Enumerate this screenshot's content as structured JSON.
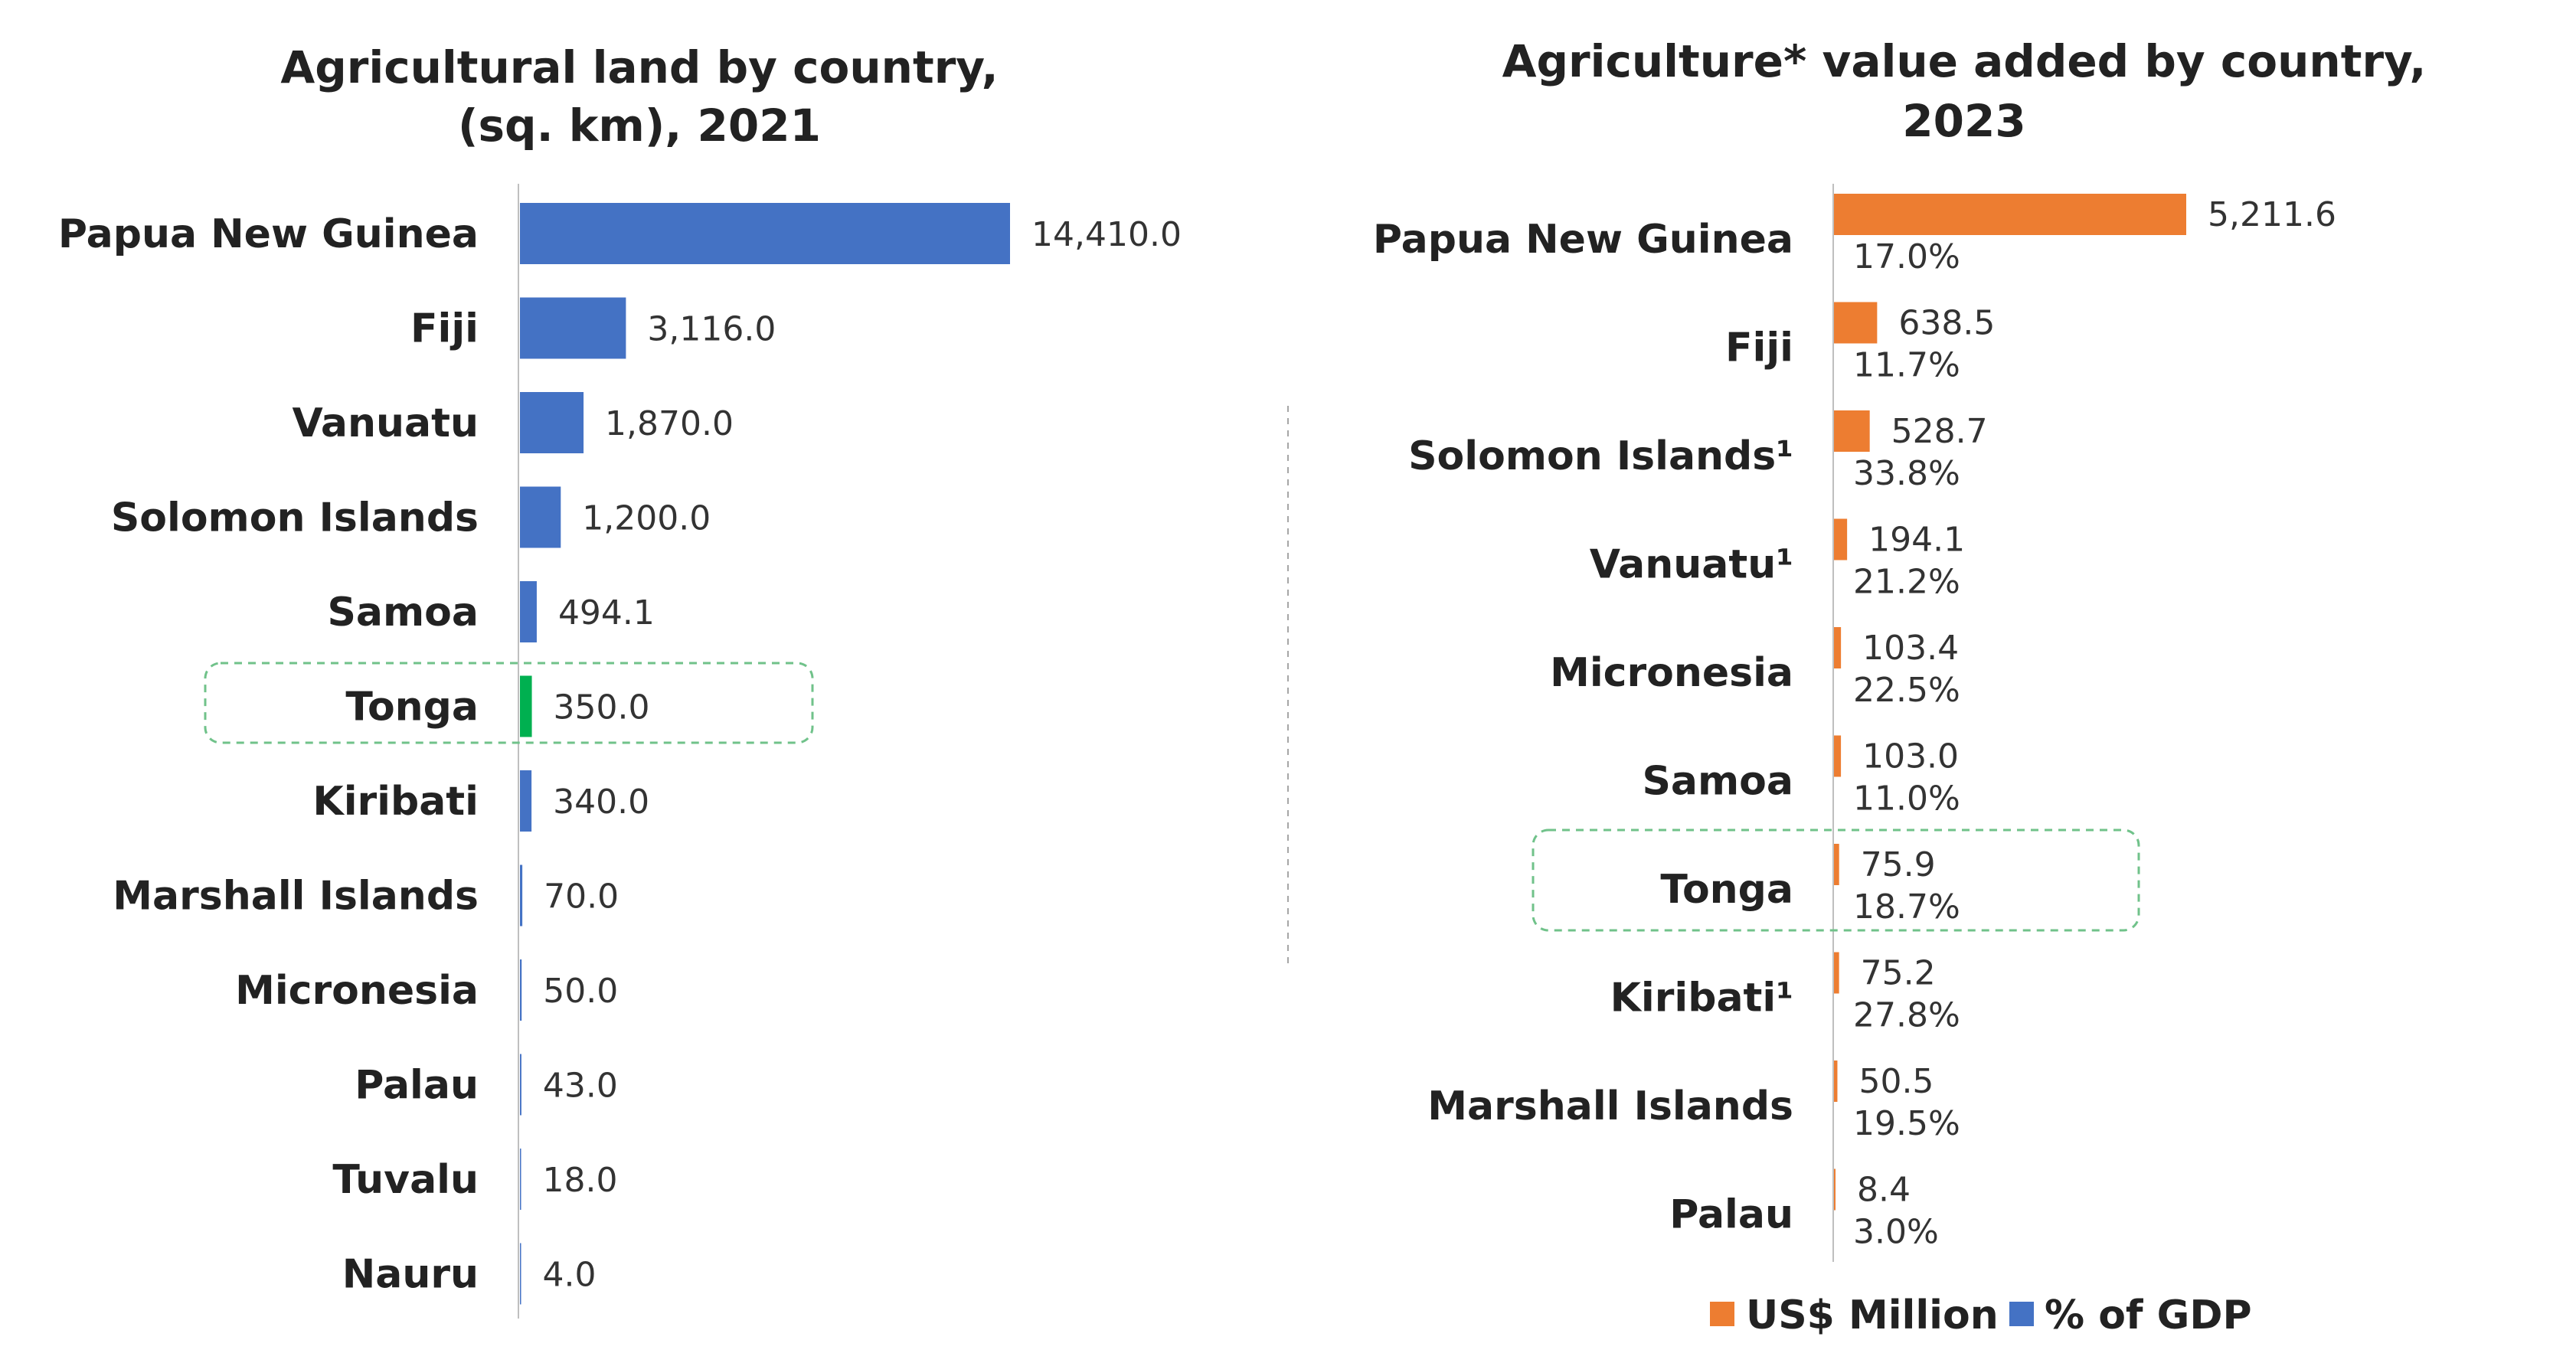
{
  "colors": {
    "land_bar": "#4472C4",
    "highlight_bar": "#00B050",
    "value_bar": "#ED7D31",
    "gdp_legend": "#4472C4",
    "highlight_box": "#70C28A",
    "axis": "#BFBFBF",
    "divider": "#A6A6A6"
  },
  "highlight_category": "Tonga",
  "chart_data": [
    {
      "type": "bar",
      "orientation": "horizontal",
      "title": "Agricultural land by country,",
      "subtitle": "(sq. km), 2021",
      "categories": [
        "Papua New Guinea",
        "Fiji",
        "Vanuatu",
        "Solomon Islands",
        "Samoa",
        "Tonga",
        "Kiribati",
        "Marshall Islands",
        "Micronesia",
        "Palau",
        "Tuvalu",
        "Nauru"
      ],
      "values": [
        14410.0,
        3116.0,
        1870.0,
        1200.0,
        494.1,
        350.0,
        340.0,
        70.0,
        50.0,
        43.0,
        18.0,
        4.0
      ],
      "labels": [
        "14,410.0",
        "3,116.0",
        "1,870.0",
        "1,200.0",
        "494.1",
        "350.0",
        "340.0",
        "70.0",
        "50.0",
        "43.0",
        "18.0",
        "4.0"
      ],
      "xlim": [
        0,
        14410.0
      ],
      "grid": false,
      "legend": "none"
    },
    {
      "type": "bar",
      "orientation": "horizontal",
      "title": "Agriculture* value added by country,",
      "subtitle": "2023",
      "categories": [
        "Papua New Guinea",
        "Fiji",
        "Solomon Islands¹",
        "Vanuatu¹",
        "Micronesia",
        "Samoa",
        "Tonga",
        "Kiribati¹",
        "Marshall Islands",
        "Palau"
      ],
      "series": [
        {
          "name": "US$ Million",
          "values": [
            5211.6,
            638.5,
            528.7,
            194.1,
            103.4,
            103.0,
            75.9,
            75.2,
            50.5,
            8.4
          ],
          "labels": [
            "5,211.6",
            "638.5",
            "528.7",
            "194.1",
            "103.4",
            "103.0",
            "75.9",
            "75.2",
            "50.5",
            "8.4"
          ]
        },
        {
          "name": "% of GDP",
          "values": [
            17.0,
            11.7,
            33.8,
            21.2,
            22.5,
            11.0,
            18.7,
            27.8,
            19.5,
            3.0
          ],
          "labels": [
            "17.0%",
            "11.7%",
            "33.8%",
            "21.2%",
            "22.5%",
            "11.0%",
            "18.7%",
            "27.8%",
            "19.5%",
            "3.0%"
          ]
        }
      ],
      "xlim": [
        0,
        5211.6
      ],
      "grid": false,
      "legend": "bottom"
    }
  ]
}
